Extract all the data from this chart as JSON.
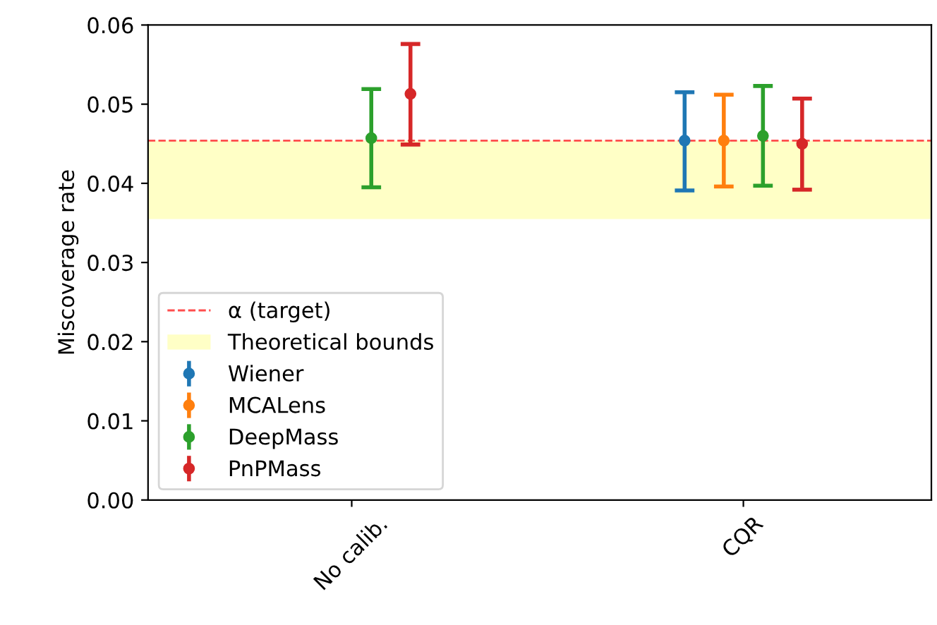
{
  "chart_data": {
    "type": "scatter",
    "ylabel": "Miscoverage rate",
    "categories": [
      "No calib.",
      "CQR"
    ],
    "series": [
      {
        "name": "Wiener",
        "color": "#1f77b4",
        "values": [
          null,
          0.0454
        ],
        "errors": [
          null,
          [
            0.0391,
            0.0515
          ]
        ]
      },
      {
        "name": "MCALens",
        "color": "#ff7f0e",
        "values": [
          null,
          0.0454
        ],
        "errors": [
          null,
          [
            0.0396,
            0.0512
          ]
        ]
      },
      {
        "name": "DeepMass",
        "color": "#2ca02c",
        "values": [
          0.0457,
          0.046
        ],
        "errors": [
          [
            0.0395,
            0.0519
          ],
          [
            0.0397,
            0.0523
          ]
        ]
      },
      {
        "name": "PnPMass",
        "color": "#d62728",
        "values": [
          0.0513,
          0.045
        ],
        "errors": [
          [
            0.0449,
            0.0576
          ],
          [
            0.0392,
            0.0507
          ]
        ]
      }
    ],
    "ref_lines": [
      {
        "axis": "y",
        "value": 0.0454,
        "label": "α (target)",
        "color": "#ff4d4d",
        "line_style": "dashed"
      }
    ],
    "bands": [
      {
        "axis": "y",
        "from": 0.0355,
        "to": 0.0454,
        "label": "Theoretical bounds",
        "color": "#ffffc6"
      }
    ],
    "ylim": [
      0,
      0.06
    ],
    "yticks": [
      {
        "value": 0,
        "label": "0.00"
      },
      {
        "value": 0.01,
        "label": "0.01"
      },
      {
        "value": 0.02,
        "label": "0.02"
      },
      {
        "value": 0.03,
        "label": "0.03"
      },
      {
        "value": 0.04,
        "label": "0.04"
      },
      {
        "value": 0.05,
        "label": "0.05"
      },
      {
        "value": 0.06,
        "label": "0.06"
      }
    ],
    "marker": "circle",
    "grid": false,
    "legend": "lower left"
  }
}
